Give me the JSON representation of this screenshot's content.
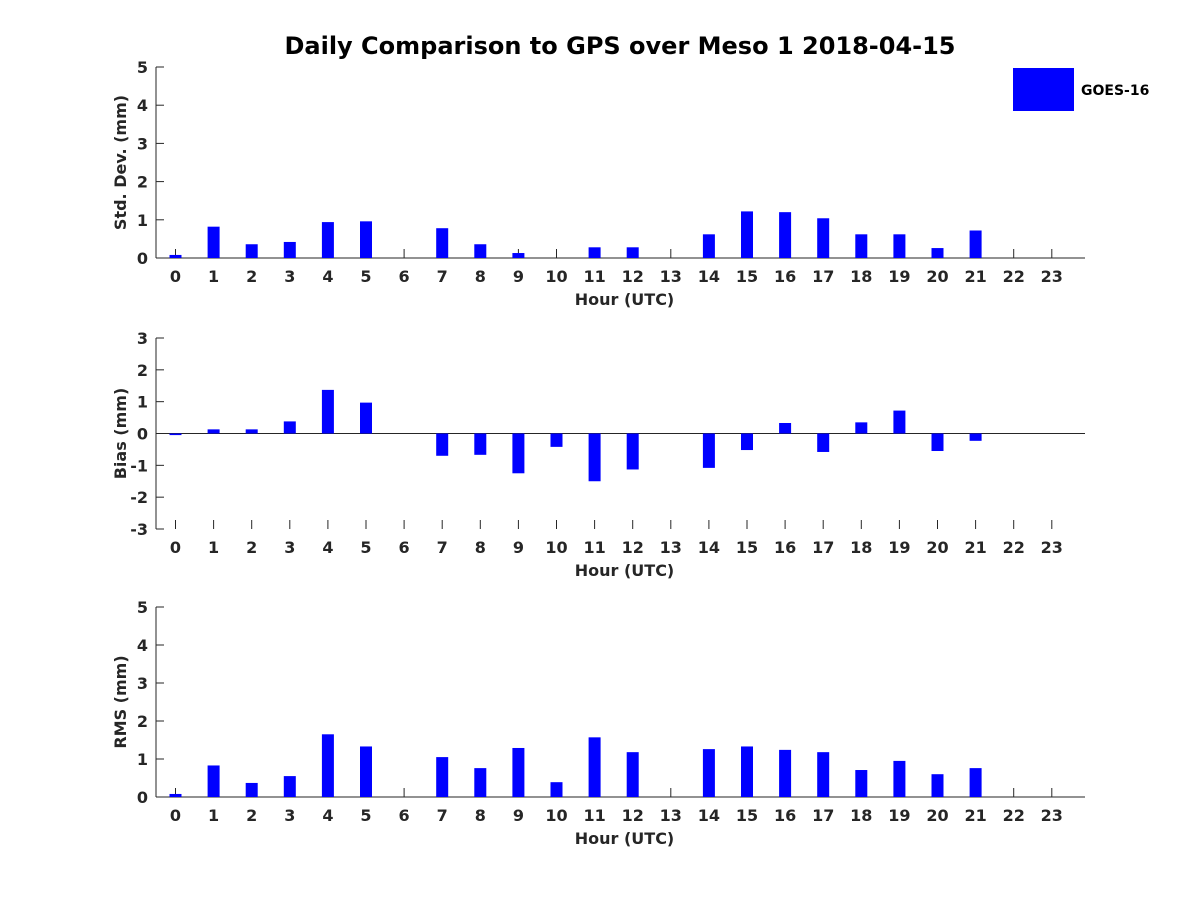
{
  "title": "Daily Comparison to GPS over Meso 1 2018-04-15",
  "legend": {
    "label": "GOES-16",
    "color": "#0000ff",
    "position": "top-right"
  },
  "chart_data": [
    {
      "type": "bar",
      "name": "std-dev",
      "ylabel": "Std. Dev. (mm)",
      "xlabel": "Hour (UTC)",
      "ylim": [
        0,
        5
      ],
      "yticks": [
        0,
        1,
        2,
        3,
        4,
        5
      ],
      "categories": [
        "0",
        "1",
        "2",
        "3",
        "4",
        "5",
        "6",
        "7",
        "8",
        "9",
        "10",
        "11",
        "12",
        "13",
        "14",
        "15",
        "16",
        "17",
        "18",
        "19",
        "20",
        "21",
        "22",
        "23"
      ],
      "series": [
        {
          "name": "GOES-16",
          "values": [
            0.08,
            0.82,
            0.36,
            0.42,
            0.94,
            0.96,
            null,
            0.78,
            0.36,
            0.13,
            null,
            0.28,
            0.28,
            null,
            0.62,
            1.22,
            1.2,
            1.04,
            0.62,
            0.62,
            0.26,
            0.72,
            null,
            null
          ]
        }
      ]
    },
    {
      "type": "bar",
      "name": "bias",
      "ylabel": "Bias (mm)",
      "xlabel": "Hour (UTC)",
      "ylim": [
        -3,
        3
      ],
      "yticks": [
        -3,
        -2,
        -1,
        0,
        1,
        2,
        3
      ],
      "categories": [
        "0",
        "1",
        "2",
        "3",
        "4",
        "5",
        "6",
        "7",
        "8",
        "9",
        "10",
        "11",
        "12",
        "13",
        "14",
        "15",
        "16",
        "17",
        "18",
        "19",
        "20",
        "21",
        "22",
        "23"
      ],
      "series": [
        {
          "name": "GOES-16",
          "values": [
            -0.05,
            0.13,
            0.13,
            0.38,
            1.37,
            0.97,
            null,
            -0.7,
            -0.67,
            -1.25,
            -0.42,
            -1.5,
            -1.13,
            null,
            -1.08,
            -0.52,
            0.33,
            -0.58,
            0.35,
            0.72,
            -0.55,
            -0.23,
            null,
            null
          ]
        }
      ]
    },
    {
      "type": "bar",
      "name": "rms",
      "ylabel": "RMS (mm)",
      "xlabel": "Hour (UTC)",
      "ylim": [
        0,
        5
      ],
      "yticks": [
        0,
        1,
        2,
        3,
        4,
        5
      ],
      "categories": [
        "0",
        "1",
        "2",
        "3",
        "4",
        "5",
        "6",
        "7",
        "8",
        "9",
        "10",
        "11",
        "12",
        "13",
        "14",
        "15",
        "16",
        "17",
        "18",
        "19",
        "20",
        "21",
        "22",
        "23"
      ],
      "series": [
        {
          "name": "GOES-16",
          "values": [
            0.08,
            0.83,
            0.37,
            0.55,
            1.65,
            1.33,
            null,
            1.05,
            0.76,
            1.29,
            0.39,
            1.57,
            1.18,
            null,
            1.26,
            1.33,
            1.24,
            1.18,
            0.71,
            0.95,
            0.6,
            0.76,
            null,
            null
          ]
        }
      ]
    }
  ]
}
